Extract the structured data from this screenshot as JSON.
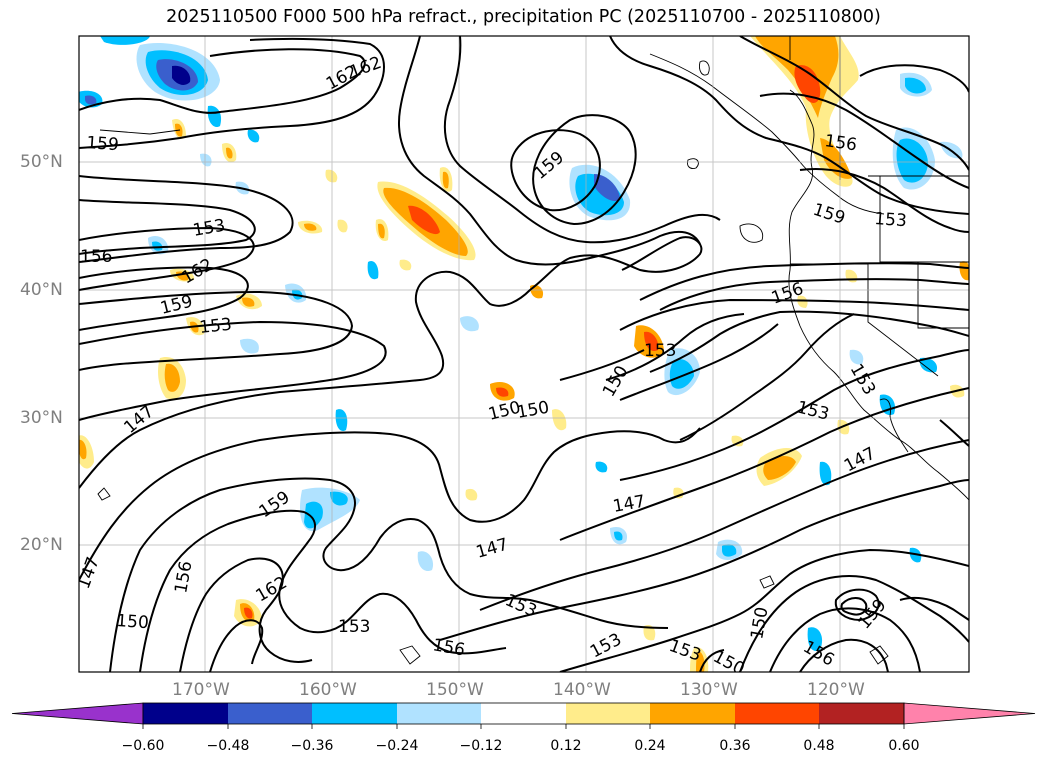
{
  "title": "2025110500 F000 500 hPa refract., precipitation PC (2025110700 - 2025110800)",
  "lat_labels": [
    "50°N",
    "40°N",
    "30°N",
    "20°N"
  ],
  "lon_labels": [
    "170°W",
    "160°W",
    "150°W",
    "140°W",
    "130°W",
    "120°W"
  ],
  "contour_labels": [
    "162",
    "162",
    "159",
    "159",
    "156",
    "153",
    "159",
    "153",
    "156",
    "153",
    "162",
    "159",
    "153",
    "156",
    "153",
    "150",
    "150",
    "150",
    "153",
    "147",
    "147",
    "159",
    "147",
    "147",
    "147",
    "156",
    "162",
    "153",
    "150",
    "156",
    "153",
    "153",
    "150",
    "153",
    "156",
    "159",
    "150"
  ],
  "colorbar": {
    "ticks": [
      "−0.60",
      "−0.48",
      "−0.36",
      "−0.24",
      "−0.12",
      "0.12",
      "0.24",
      "0.36",
      "0.48",
      "0.60"
    ],
    "colors": [
      "#9932cc",
      "#00008b",
      "#3a5fcd",
      "#00bfff",
      "#b0e2ff",
      "#ffffff",
      "#ffec8b",
      "#ffa500",
      "#ff4500",
      "#b22222",
      "#ff82ab"
    ]
  }
}
